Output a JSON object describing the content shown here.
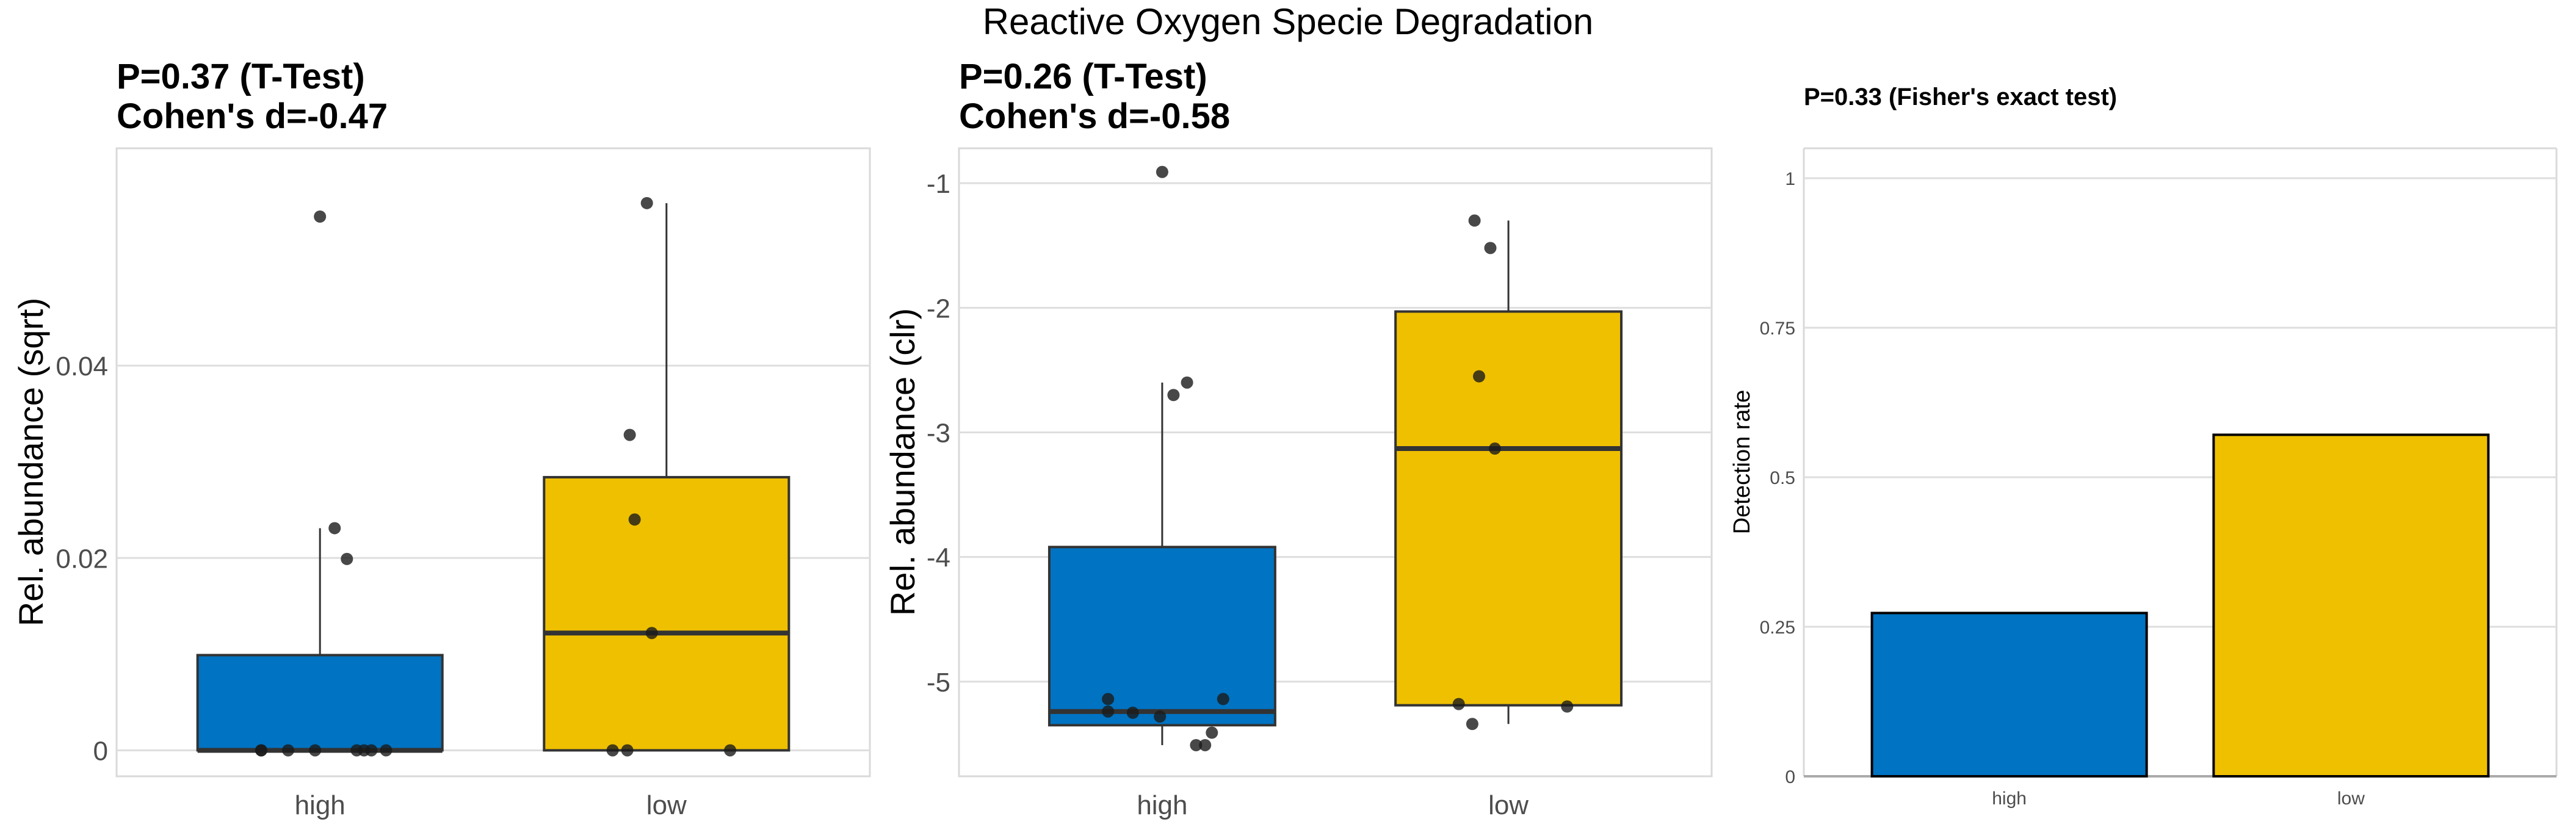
{
  "figure_title": "Reactive Oxygen Specie Degradation",
  "colors": {
    "high": "#0073C2",
    "low": "#EFC000",
    "points": "#1a1a1a",
    "box_outline": "#333333",
    "grid": "#DEDEDE"
  },
  "chart_data": [
    {
      "type": "boxplot",
      "title_line1": "P=0.37 (T-Test)",
      "title_line2": "Cohen's d=-0.47",
      "xlabel": "",
      "ylabel": "Rel. abundance (sqrt)",
      "ylim": [
        -0.0027,
        0.0626
      ],
      "yticks": [
        0,
        0.02,
        0.04
      ],
      "ytick_labels": [
        "0",
        "0.02",
        "0.04"
      ],
      "categories": [
        "high",
        "low"
      ],
      "grid": true,
      "boxes": [
        {
          "group": "high",
          "q1": 0,
          "median": 0,
          "q3": 0.0099,
          "whisker_low": 0,
          "whisker_high": 0.0231,
          "points": [
            0,
            0,
            0,
            0,
            0,
            0,
            0,
            0,
            0.0199,
            0.0231,
            0.0555
          ]
        },
        {
          "group": "low",
          "q1": 0,
          "median": 0.0122,
          "q3": 0.0284,
          "whisker_low": 0,
          "whisker_high": 0.0569,
          "points": [
            0,
            0,
            0,
            0.0122,
            0.024,
            0.0328,
            0.0569
          ]
        }
      ]
    },
    {
      "type": "boxplot",
      "title_line1": "P=0.26 (T-Test)",
      "title_line2": "Cohen's d=-0.58",
      "xlabel": "",
      "ylabel": "Rel. abundance (clr)",
      "ylim": [
        -5.76,
        -0.72
      ],
      "yticks": [
        -1,
        -2,
        -3,
        -4,
        -5
      ],
      "ytick_labels": [
        "-1",
        "-2",
        "-3",
        "-4",
        "-5"
      ],
      "categories": [
        "high",
        "low"
      ],
      "grid": true,
      "boxes": [
        {
          "group": "high",
          "q1": -5.35,
          "median": -5.24,
          "q3": -3.92,
          "whisker_low": -5.51,
          "whisker_high": -2.6,
          "points": [
            -0.91,
            -2.6,
            -2.7,
            -5.14,
            -5.14,
            -5.24,
            -5.25,
            -5.28,
            -5.41,
            -5.51,
            -5.51
          ]
        },
        {
          "group": "low",
          "q1": -5.19,
          "median": -3.13,
          "q3": -2.03,
          "whisker_low": -5.34,
          "whisker_high": -1.3,
          "points": [
            -1.3,
            -1.52,
            -2.55,
            -3.13,
            -5.18,
            -5.2,
            -5.34
          ]
        }
      ]
    },
    {
      "type": "bar",
      "title": "P=0.33 (Fisher's exact test)",
      "xlabel": "",
      "ylabel": "Detection rate",
      "ylim": [
        0,
        1.05
      ],
      "yticks": [
        0,
        0.25,
        0.5,
        0.75,
        1
      ],
      "ytick_labels": [
        "0",
        "0.25",
        "0.5",
        "0.75",
        "1"
      ],
      "categories": [
        "high",
        "low"
      ],
      "values": [
        0.273,
        0.571
      ],
      "grid": true
    }
  ]
}
